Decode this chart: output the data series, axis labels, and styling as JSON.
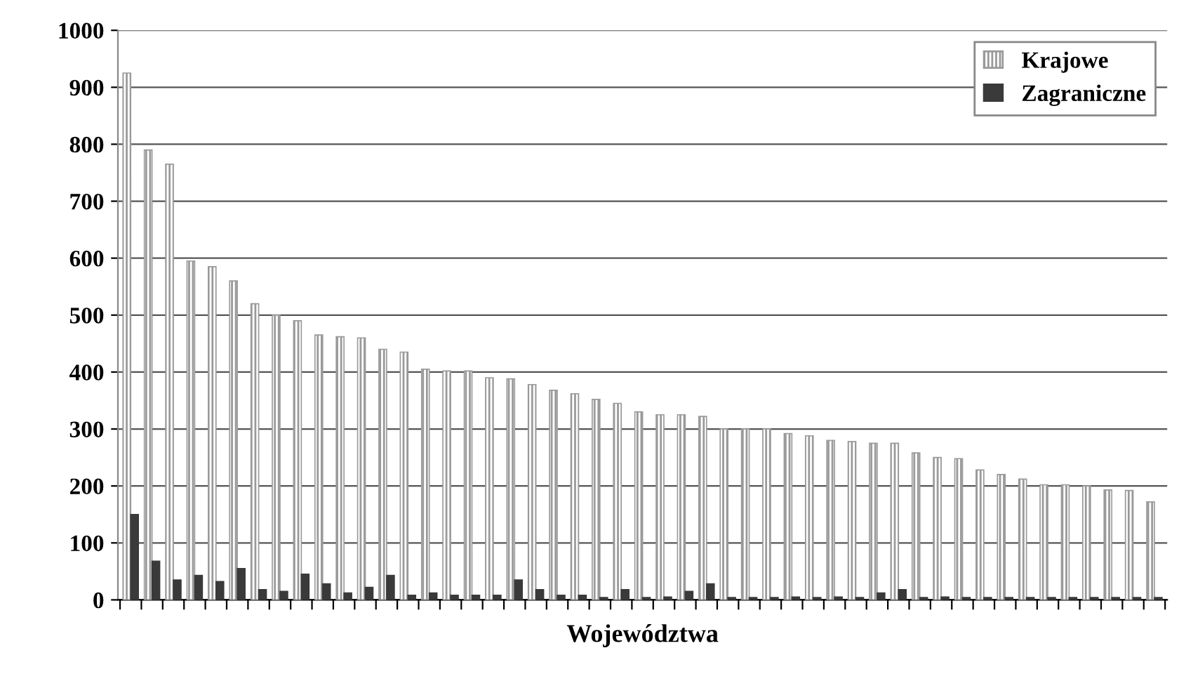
{
  "chart_data": {
    "type": "bar",
    "xlabel": "Województwa",
    "categories": [
      null,
      null,
      null,
      null,
      null,
      null,
      null,
      null,
      null,
      null,
      null,
      null,
      null,
      null,
      null,
      null,
      null,
      null,
      null,
      null,
      null,
      null,
      null,
      null,
      null,
      null,
      null,
      null,
      null,
      null,
      null,
      null,
      null,
      null,
      null,
      null,
      null,
      null,
      null,
      null,
      null,
      null,
      null,
      null,
      null,
      null,
      null,
      null,
      null
    ],
    "series": [
      {
        "name": "Krajowe",
        "color": "#9a9a9a",
        "values": [
          925,
          790,
          765,
          595,
          585,
          560,
          520,
          500,
          490,
          465,
          462,
          460,
          440,
          435,
          405,
          402,
          402,
          390,
          388,
          378,
          368,
          362,
          352,
          345,
          330,
          325,
          325,
          322,
          300,
          300,
          300,
          292,
          288,
          280,
          278,
          275,
          275,
          258,
          250,
          248,
          228,
          220,
          212,
          202,
          202,
          200,
          193,
          192,
          172
        ]
      },
      {
        "name": "Zagraniczne",
        "color": "#3a3a3a",
        "values": [
          150,
          68,
          35,
          43,
          32,
          55,
          18,
          15,
          45,
          28,
          12,
          22,
          43,
          8,
          12,
          8,
          8,
          8,
          35,
          18,
          8,
          8,
          4,
          18,
          4,
          5,
          15,
          28,
          4,
          4,
          4,
          5,
          4,
          5,
          4,
          12,
          18,
          4,
          5,
          4,
          4,
          4,
          4,
          4,
          4,
          4,
          4,
          4,
          4
        ]
      }
    ],
    "ylim": [
      0,
      1000
    ],
    "yticks": [
      0,
      100,
      200,
      300,
      400,
      500,
      600,
      700,
      800,
      900,
      1000
    ],
    "grid": "y",
    "legend": "top right"
  }
}
